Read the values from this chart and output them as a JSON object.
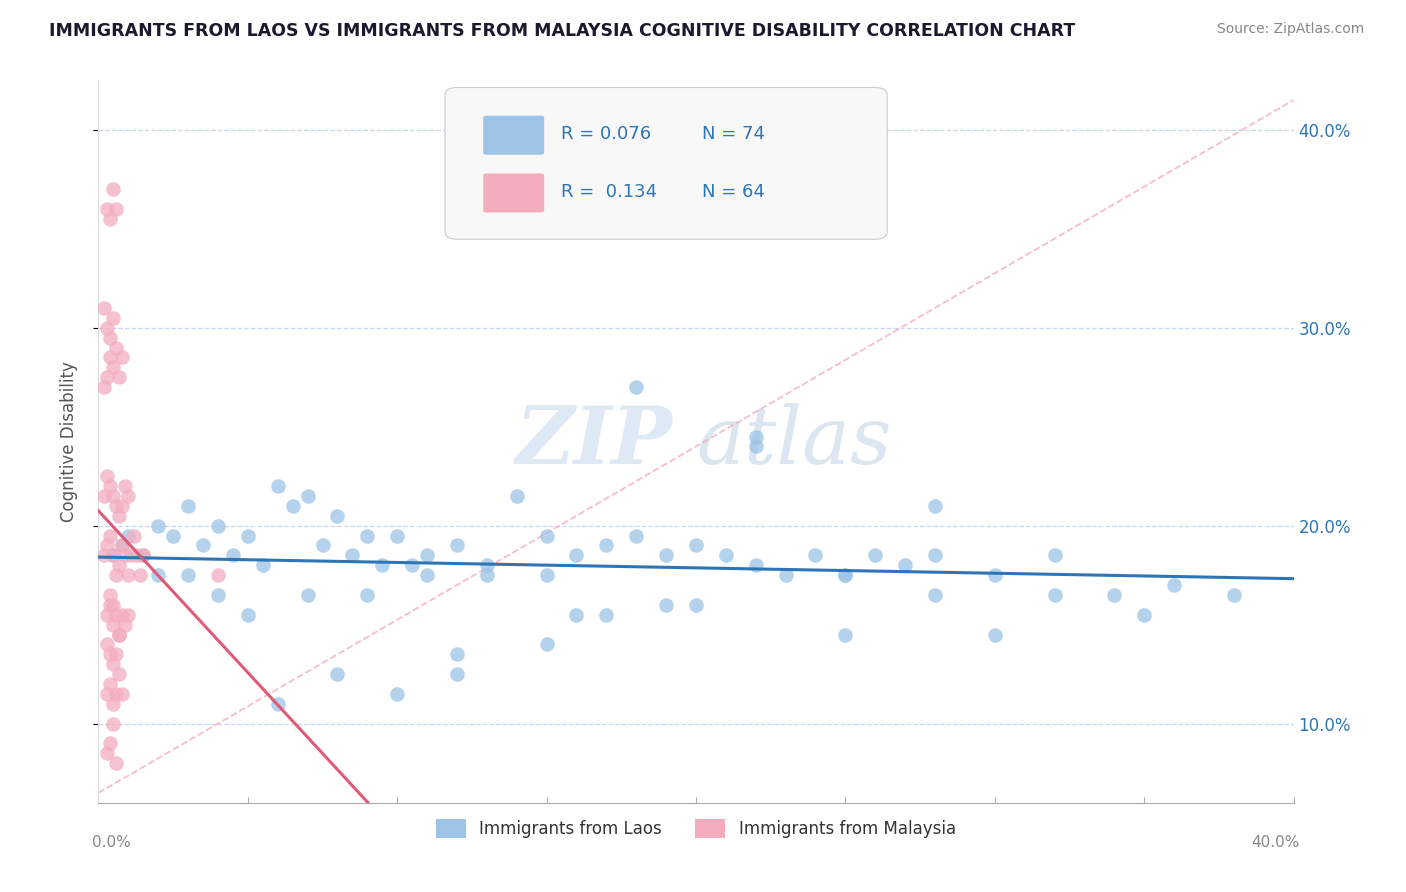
{
  "title": "IMMIGRANTS FROM LAOS VS IMMIGRANTS FROM MALAYSIA COGNITIVE DISABILITY CORRELATION CHART",
  "source": "Source: ZipAtlas.com",
  "ylabel": "Cognitive Disability",
  "xlim": [
    0.0,
    0.4
  ],
  "ylim": [
    0.06,
    0.425
  ],
  "yticks": [
    0.1,
    0.2,
    0.3,
    0.4
  ],
  "ytick_labels": [
    "10.0%",
    "20.0%",
    "30.0%",
    "40.0%"
  ],
  "xticks": [
    0.0,
    0.05,
    0.1,
    0.15,
    0.2,
    0.25,
    0.3,
    0.35,
    0.4
  ],
  "series1_color": "#9dc3e6",
  "series2_color": "#f4acbe",
  "line1_color": "#2e75b6",
  "line2_color": "#e05a78",
  "ref_line_color": "#f4acbe",
  "R1": 0.076,
  "N1": 74,
  "R2": 0.134,
  "N2": 64,
  "legend1_label": "Immigrants from Laos",
  "legend2_label": "Immigrants from Malaysia",
  "watermark_zip": "ZIP",
  "watermark_atlas": "atlas",
  "title_color": "#1a1a2e",
  "axis_label_color": "#2e75b6",
  "tick_color": "#888888",
  "legend_R_color": "#2e75b6",
  "legend_N_color": "#2e75b6",
  "legend_text_color": "#333333",
  "grid_color": "#c8d8e8",
  "scatter1_x": [
    0.005,
    0.008,
    0.01,
    0.015,
    0.02,
    0.025,
    0.03,
    0.035,
    0.04,
    0.045,
    0.05,
    0.055,
    0.06,
    0.065,
    0.07,
    0.075,
    0.08,
    0.085,
    0.09,
    0.095,
    0.1,
    0.105,
    0.11,
    0.12,
    0.13,
    0.14,
    0.15,
    0.16,
    0.17,
    0.18,
    0.19,
    0.2,
    0.21,
    0.22,
    0.23,
    0.24,
    0.25,
    0.26,
    0.27,
    0.28,
    0.3,
    0.32,
    0.34,
    0.36,
    0.38,
    0.02,
    0.03,
    0.04,
    0.05,
    0.07,
    0.09,
    0.11,
    0.13,
    0.15,
    0.17,
    0.19,
    0.22,
    0.25,
    0.28,
    0.32,
    0.12,
    0.08,
    0.06,
    0.1,
    0.18,
    0.25,
    0.22,
    0.15,
    0.3,
    0.35,
    0.28,
    0.2,
    0.16,
    0.12
  ],
  "scatter1_y": [
    0.185,
    0.19,
    0.195,
    0.185,
    0.2,
    0.195,
    0.21,
    0.19,
    0.2,
    0.185,
    0.195,
    0.18,
    0.22,
    0.21,
    0.215,
    0.19,
    0.205,
    0.185,
    0.195,
    0.18,
    0.195,
    0.18,
    0.185,
    0.19,
    0.18,
    0.215,
    0.195,
    0.185,
    0.19,
    0.195,
    0.185,
    0.19,
    0.185,
    0.18,
    0.175,
    0.185,
    0.175,
    0.185,
    0.18,
    0.185,
    0.175,
    0.185,
    0.165,
    0.17,
    0.165,
    0.175,
    0.175,
    0.165,
    0.155,
    0.165,
    0.165,
    0.175,
    0.175,
    0.14,
    0.155,
    0.16,
    0.24,
    0.145,
    0.165,
    0.165,
    0.135,
    0.125,
    0.11,
    0.115,
    0.27,
    0.175,
    0.245,
    0.175,
    0.145,
    0.155,
    0.21,
    0.16,
    0.155,
    0.125
  ],
  "scatter2_x": [
    0.002,
    0.003,
    0.004,
    0.005,
    0.006,
    0.007,
    0.008,
    0.009,
    0.01,
    0.011,
    0.012,
    0.013,
    0.014,
    0.015,
    0.002,
    0.003,
    0.004,
    0.005,
    0.006,
    0.007,
    0.008,
    0.009,
    0.01,
    0.002,
    0.003,
    0.004,
    0.005,
    0.006,
    0.007,
    0.008,
    0.002,
    0.003,
    0.004,
    0.005,
    0.003,
    0.004,
    0.005,
    0.006,
    0.007,
    0.008,
    0.009,
    0.01,
    0.003,
    0.004,
    0.005,
    0.006,
    0.007,
    0.003,
    0.004,
    0.005,
    0.006,
    0.007,
    0.008,
    0.003,
    0.004,
    0.005,
    0.003,
    0.004,
    0.005,
    0.006,
    0.004,
    0.005,
    0.006,
    0.04
  ],
  "scatter2_y": [
    0.185,
    0.19,
    0.195,
    0.185,
    0.175,
    0.18,
    0.19,
    0.185,
    0.175,
    0.185,
    0.195,
    0.185,
    0.175,
    0.185,
    0.215,
    0.225,
    0.22,
    0.215,
    0.21,
    0.205,
    0.21,
    0.22,
    0.215,
    0.27,
    0.275,
    0.285,
    0.28,
    0.29,
    0.275,
    0.285,
    0.31,
    0.3,
    0.295,
    0.305,
    0.155,
    0.16,
    0.15,
    0.155,
    0.145,
    0.155,
    0.15,
    0.155,
    0.14,
    0.135,
    0.13,
    0.135,
    0.145,
    0.115,
    0.12,
    0.11,
    0.115,
    0.125,
    0.115,
    0.085,
    0.09,
    0.1,
    0.36,
    0.355,
    0.37,
    0.36,
    0.165,
    0.16,
    0.08,
    0.175
  ]
}
